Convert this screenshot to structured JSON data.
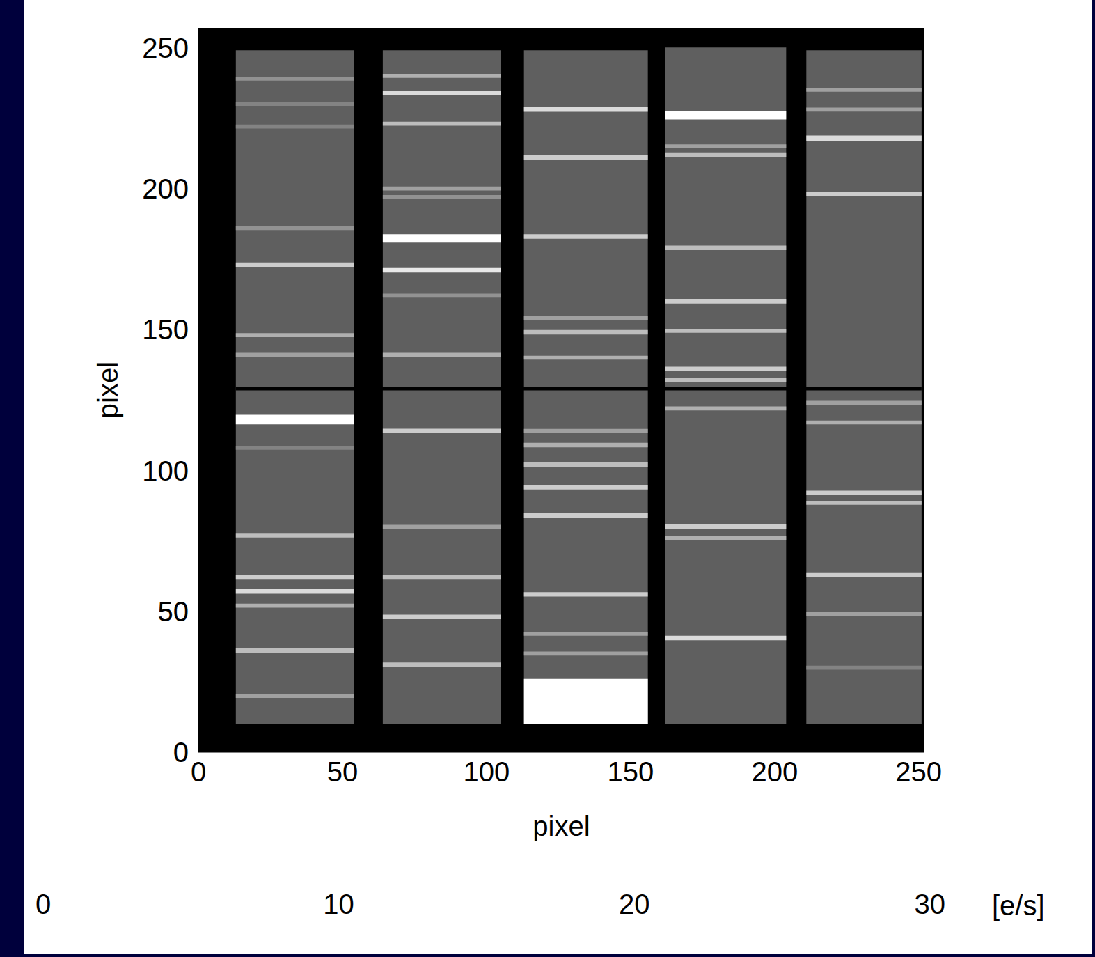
{
  "chart_data": {
    "type": "image",
    "xlabel": "pixel",
    "ylabel": "pixel",
    "xlim": [
      0,
      252
    ],
    "ylim": [
      0,
      257
    ],
    "xticks": [
      0,
      50,
      100,
      150,
      200,
      250
    ],
    "yticks": [
      0,
      50,
      100,
      150,
      200,
      250
    ],
    "background": 0,
    "colorbar": {
      "range": [
        0,
        35
      ],
      "ticks": [
        0,
        10,
        20,
        30
      ],
      "label": "[e/s]"
    },
    "stripes": [
      {
        "x": [
          13,
          54
        ],
        "y": [
          10,
          249
        ],
        "value": 13,
        "lines": [
          {
            "y": [
              238.3,
              239.7
            ],
            "value": 20
          },
          {
            "y": [
              229.3,
              230.7
            ],
            "value": 18
          },
          {
            "y": [
              221.3,
              222.7
            ],
            "value": 18
          },
          {
            "y": [
              185.3,
              186.7
            ],
            "value": 20
          },
          {
            "y": [
              172.2,
              173.8
            ],
            "value": 28
          },
          {
            "y": [
              147.3,
              148.7
            ],
            "value": 24
          },
          {
            "y": [
              140.3,
              141.7
            ],
            "value": 22
          },
          {
            "y": [
              116.3,
              119.7
            ],
            "value": 35
          },
          {
            "y": [
              107.3,
              108.7
            ],
            "value": 18
          },
          {
            "y": [
              76.2,
              77.8
            ],
            "value": 26
          },
          {
            "y": [
              61.2,
              62.8
            ],
            "value": 28
          },
          {
            "y": [
              56.2,
              57.8
            ],
            "value": 30
          },
          {
            "y": [
              51.3,
              52.7
            ],
            "value": 24
          },
          {
            "y": [
              35.2,
              36.8
            ],
            "value": 26
          },
          {
            "y": [
              19.3,
              20.7
            ],
            "value": 22
          }
        ]
      },
      {
        "x": [
          64,
          105
        ],
        "y": [
          10,
          249
        ],
        "value": 13,
        "lines": [
          {
            "y": [
              239.3,
              240.7
            ],
            "value": 24
          },
          {
            "y": [
              233.3,
              234.7
            ],
            "value": 30
          },
          {
            "y": [
              222.3,
              223.7
            ],
            "value": 26
          },
          {
            "y": [
              199.3,
              200.7
            ],
            "value": 22
          },
          {
            "y": [
              196.3,
              197.7
            ],
            "value": 20
          },
          {
            "y": [
              180.8,
              183.8
            ],
            "value": 35
          },
          {
            "y": [
              170.2,
              171.8
            ],
            "value": 32
          },
          {
            "y": [
              161.3,
              162.7
            ],
            "value": 20
          },
          {
            "y": [
              140.3,
              141.7
            ],
            "value": 24
          },
          {
            "y": [
              113.2,
              114.8
            ],
            "value": 28
          },
          {
            "y": [
              79.3,
              80.7
            ],
            "value": 22
          },
          {
            "y": [
              61.2,
              62.8
            ],
            "value": 26
          },
          {
            "y": [
              47.2,
              48.8
            ],
            "value": 28
          },
          {
            "y": [
              30.2,
              31.8
            ],
            "value": 26
          }
        ]
      },
      {
        "x": [
          113,
          156
        ],
        "y": [
          10,
          249
        ],
        "value": 13,
        "lines": [
          {
            "y": [
              227.2,
              228.8
            ],
            "value": 30
          },
          {
            "y": [
              210.2,
              211.8
            ],
            "value": 28
          },
          {
            "y": [
              182.2,
              183.8
            ],
            "value": 28
          },
          {
            "y": [
              153.3,
              154.7
            ],
            "value": 22
          },
          {
            "y": [
              148.2,
              149.8
            ],
            "value": 26
          },
          {
            "y": [
              139.3,
              140.7
            ],
            "value": 24
          },
          {
            "y": [
              113.3,
              114.7
            ],
            "value": 22
          },
          {
            "y": [
              108.2,
              109.8
            ],
            "value": 24
          },
          {
            "y": [
              101.2,
              102.8
            ],
            "value": 26
          },
          {
            "y": [
              93.2,
              94.8
            ],
            "value": 28
          },
          {
            "y": [
              83.2,
              84.8
            ],
            "value": 28
          },
          {
            "y": [
              55.2,
              56.8
            ],
            "value": 28
          },
          {
            "y": [
              41.3,
              42.7
            ],
            "value": 22
          },
          {
            "y": [
              34.3,
              35.7
            ],
            "value": 22
          },
          {
            "y": [
              10,
              26
            ],
            "value": 35
          }
        ]
      },
      {
        "x": [
          162,
          204
        ],
        "y": [
          10,
          250
        ],
        "value": 13,
        "lines": [
          {
            "y": [
              224.5,
              227.5
            ],
            "value": 35
          },
          {
            "y": [
              214.3,
              215.7
            ],
            "value": 22
          },
          {
            "y": [
              211.2,
              212.8
            ],
            "value": 26
          },
          {
            "y": [
              178.2,
              179.8
            ],
            "value": 26
          },
          {
            "y": [
              159.2,
              160.8
            ],
            "value": 28
          },
          {
            "y": [
              148.8,
              150.2
            ],
            "value": 26
          },
          {
            "y": [
              135.2,
              136.8
            ],
            "value": 28
          },
          {
            "y": [
              131.2,
              132.8
            ],
            "value": 26
          },
          {
            "y": [
              121.3,
              122.7
            ],
            "value": 24
          },
          {
            "y": [
              79.2,
              80.8
            ],
            "value": 28
          },
          {
            "y": [
              75.3,
              76.7
            ],
            "value": 24
          },
          {
            "y": [
              39.7,
              41.3
            ],
            "value": 30
          }
        ]
      },
      {
        "x": [
          211,
          251
        ],
        "y": [
          10,
          249
        ],
        "value": 13,
        "lines": [
          {
            "y": [
              234.3,
              235.7
            ],
            "value": 22
          },
          {
            "y": [
              227.3,
              228.7
            ],
            "value": 22
          },
          {
            "y": [
              216.8,
              218.8
            ],
            "value": 30
          },
          {
            "y": [
              197.2,
              198.8
            ],
            "value": 28
          },
          {
            "y": [
              123.3,
              124.7
            ],
            "value": 22
          },
          {
            "y": [
              116.3,
              117.7
            ],
            "value": 24
          },
          {
            "y": [
              91.2,
              92.8
            ],
            "value": 28
          },
          {
            "y": [
              87.8,
              89.2
            ],
            "value": 26
          },
          {
            "y": [
              62.2,
              63.8
            ],
            "value": 28
          },
          {
            "y": [
              48.3,
              49.7
            ],
            "value": 22
          },
          {
            "y": [
              29.3,
              30.7
            ],
            "value": 18
          }
        ]
      }
    ],
    "features": [
      {
        "x": [
          13,
          251
        ],
        "y": [
          128.4,
          129.6
        ],
        "value": 0
      }
    ]
  }
}
